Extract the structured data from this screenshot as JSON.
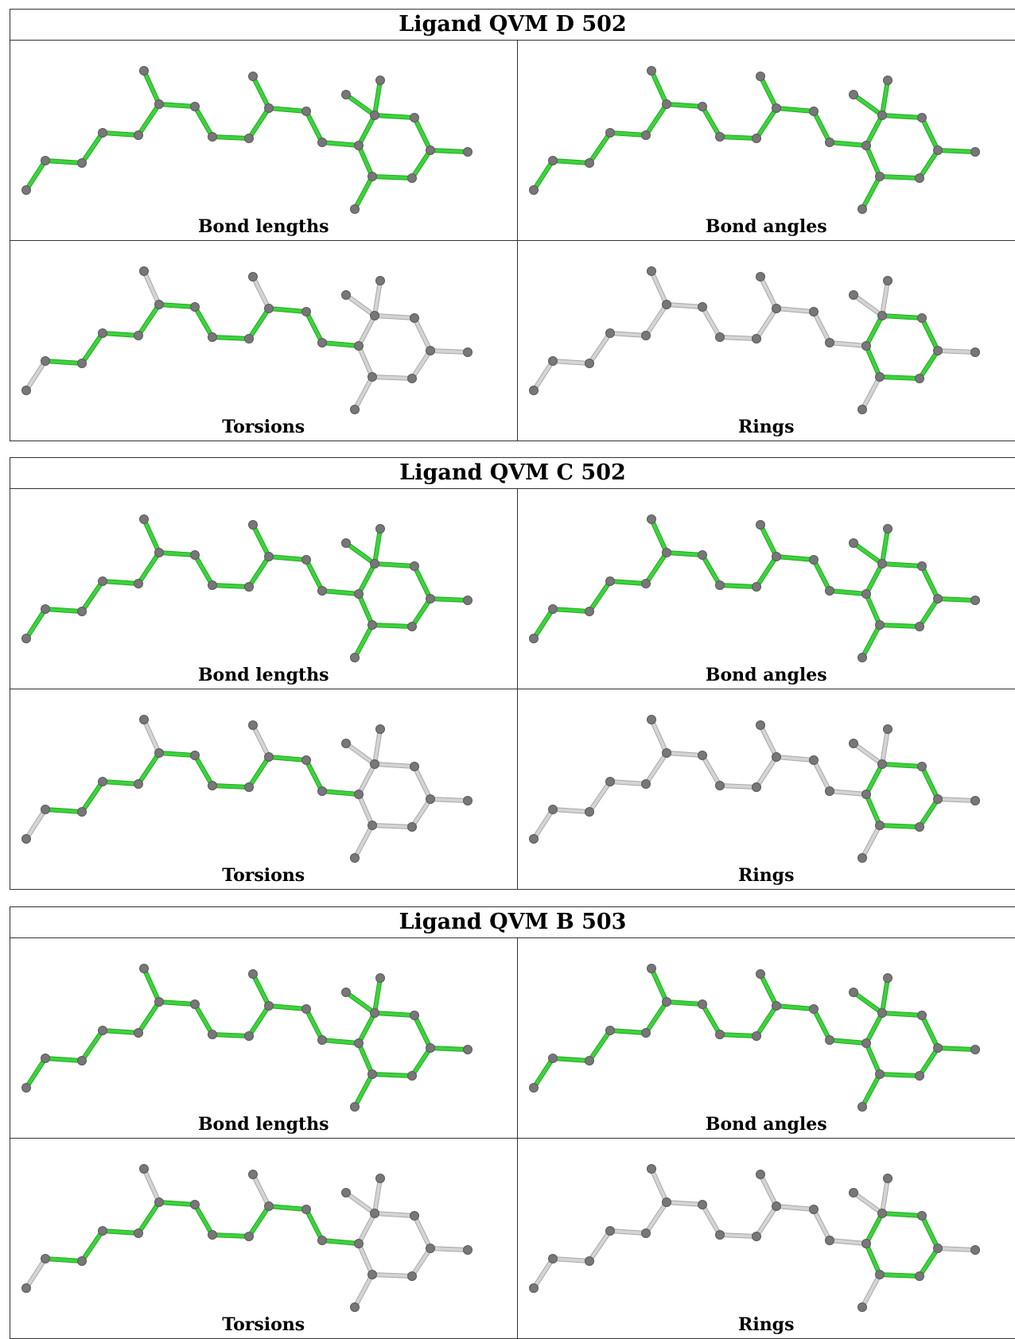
{
  "colors": {
    "highlight_bond": "#3bd43b",
    "highlight_bond_edge": "#26a626",
    "plain_bond": "#d4d4d4",
    "plain_bond_edge": "#a8a8a8",
    "atom": "#777777",
    "border": "#333333"
  },
  "panel_captions": {
    "bonds": "Bond lengths",
    "angles": "Bond angles",
    "torsions": "Torsions",
    "rings": "Rings"
  },
  "ligands": [
    {
      "title": "Ligand QVM D 502"
    },
    {
      "title": "Ligand QVM C 502"
    },
    {
      "title": "Ligand QVM B 503"
    }
  ]
}
